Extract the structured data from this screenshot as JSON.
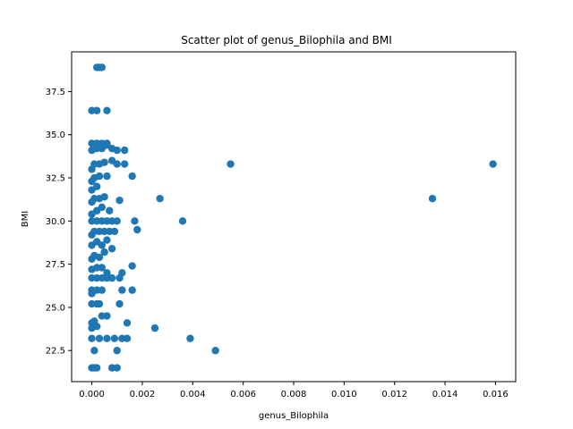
{
  "chart_data": {
    "type": "scatter",
    "title": "Scatter plot of genus_Bilophila and BMI",
    "xlabel": "genus_Bilophila",
    "ylabel": "BMI",
    "xlim": [
      -0.0008,
      0.0168
    ],
    "ylim": [
      20.7,
      39.8
    ],
    "xticks": [
      0.0,
      0.002,
      0.004,
      0.006,
      0.008,
      0.01,
      0.012,
      0.014,
      0.016
    ],
    "xtick_labels": [
      "0.000",
      "0.002",
      "0.004",
      "0.006",
      "0.008",
      "0.010",
      "0.012",
      "0.014",
      "0.016"
    ],
    "yticks": [
      22.5,
      25.0,
      27.5,
      30.0,
      32.5,
      35.0,
      37.5
    ],
    "ytick_labels": [
      "22.5",
      "25.0",
      "27.5",
      "30.0",
      "32.5",
      "35.0",
      "37.5"
    ],
    "grid": false,
    "marker_color": "#1f77b4",
    "points": [
      [
        0.0,
        21.5
      ],
      [
        0.0001,
        21.5
      ],
      [
        0.0002,
        21.5
      ],
      [
        0.0008,
        21.5
      ],
      [
        0.001,
        21.5
      ],
      [
        0.0001,
        22.5
      ],
      [
        0.001,
        22.5
      ],
      [
        0.0049,
        22.5
      ],
      [
        0.0,
        23.2
      ],
      [
        0.0003,
        23.2
      ],
      [
        0.0006,
        23.2
      ],
      [
        0.0009,
        23.2
      ],
      [
        0.0012,
        23.2
      ],
      [
        0.0014,
        23.2
      ],
      [
        0.0039,
        23.2
      ],
      [
        0.0,
        23.8
      ],
      [
        0.0002,
        23.9
      ],
      [
        0.0025,
        23.8
      ],
      [
        0.0,
        24.1
      ],
      [
        0.0001,
        24.2
      ],
      [
        0.0004,
        24.5
      ],
      [
        0.0006,
        24.5
      ],
      [
        0.0014,
        24.1
      ],
      [
        0.0,
        25.2
      ],
      [
        0.0002,
        25.2
      ],
      [
        0.0003,
        25.2
      ],
      [
        0.0011,
        25.2
      ],
      [
        0.0,
        25.8
      ],
      [
        0.0,
        26.0
      ],
      [
        0.0002,
        26.0
      ],
      [
        0.0004,
        26.0
      ],
      [
        0.0012,
        26.0
      ],
      [
        0.0016,
        26.0
      ],
      [
        0.0,
        26.7
      ],
      [
        0.0002,
        26.7
      ],
      [
        0.0004,
        26.7
      ],
      [
        0.0006,
        26.7
      ],
      [
        0.0008,
        26.7
      ],
      [
        0.0011,
        26.7
      ],
      [
        0.0012,
        27.0
      ],
      [
        0.0,
        27.2
      ],
      [
        0.0002,
        27.3
      ],
      [
        0.0004,
        27.3
      ],
      [
        0.0006,
        27.0
      ],
      [
        0.0016,
        27.4
      ],
      [
        0.0,
        27.8
      ],
      [
        0.0001,
        28.0
      ],
      [
        0.0003,
        27.9
      ],
      [
        0.0005,
        28.2
      ],
      [
        0.0008,
        28.4
      ],
      [
        0.0,
        28.6
      ],
      [
        0.0002,
        28.8
      ],
      [
        0.0004,
        28.6
      ],
      [
        0.0006,
        28.9
      ],
      [
        0.0,
        29.2
      ],
      [
        0.0001,
        29.4
      ],
      [
        0.0003,
        29.4
      ],
      [
        0.0005,
        29.4
      ],
      [
        0.0007,
        29.4
      ],
      [
        0.0009,
        29.4
      ],
      [
        0.0018,
        29.5
      ],
      [
        0.0,
        30.0
      ],
      [
        0.0002,
        30.0
      ],
      [
        0.0004,
        30.0
      ],
      [
        0.0006,
        30.0
      ],
      [
        0.0008,
        30.0
      ],
      [
        0.001,
        30.0
      ],
      [
        0.0017,
        30.0
      ],
      [
        0.0036,
        30.0
      ],
      [
        0.0,
        30.4
      ],
      [
        0.0002,
        30.6
      ],
      [
        0.0004,
        30.8
      ],
      [
        0.0007,
        30.6
      ],
      [
        0.0,
        31.1
      ],
      [
        0.0001,
        31.3
      ],
      [
        0.0003,
        31.3
      ],
      [
        0.0005,
        31.4
      ],
      [
        0.0011,
        31.2
      ],
      [
        0.0027,
        31.3
      ],
      [
        0.0,
        31.8
      ],
      [
        0.0002,
        32.0
      ],
      [
        0.0,
        32.3
      ],
      [
        0.0001,
        32.5
      ],
      [
        0.0003,
        32.6
      ],
      [
        0.0006,
        32.6
      ],
      [
        0.0016,
        32.6
      ],
      [
        0.0,
        33.0
      ],
      [
        0.0001,
        33.3
      ],
      [
        0.0003,
        33.3
      ],
      [
        0.0005,
        33.4
      ],
      [
        0.0008,
        33.5
      ],
      [
        0.001,
        33.3
      ],
      [
        0.0013,
        33.3
      ],
      [
        0.0055,
        33.3
      ],
      [
        0.0,
        34.1
      ],
      [
        0.0002,
        34.2
      ],
      [
        0.0004,
        34.2
      ],
      [
        0.0006,
        34.4
      ],
      [
        0.0008,
        34.2
      ],
      [
        0.001,
        34.1
      ],
      [
        0.0013,
        34.1
      ],
      [
        0.0,
        34.5
      ],
      [
        0.0002,
        34.5
      ],
      [
        0.0004,
        34.5
      ],
      [
        0.0006,
        34.5
      ],
      [
        0.0,
        36.4
      ],
      [
        0.0002,
        36.4
      ],
      [
        0.0006,
        36.4
      ],
      [
        0.0002,
        38.9
      ],
      [
        0.0003,
        38.9
      ],
      [
        0.0004,
        38.9
      ],
      [
        0.0135,
        31.3
      ],
      [
        0.0159,
        33.3
      ]
    ]
  }
}
